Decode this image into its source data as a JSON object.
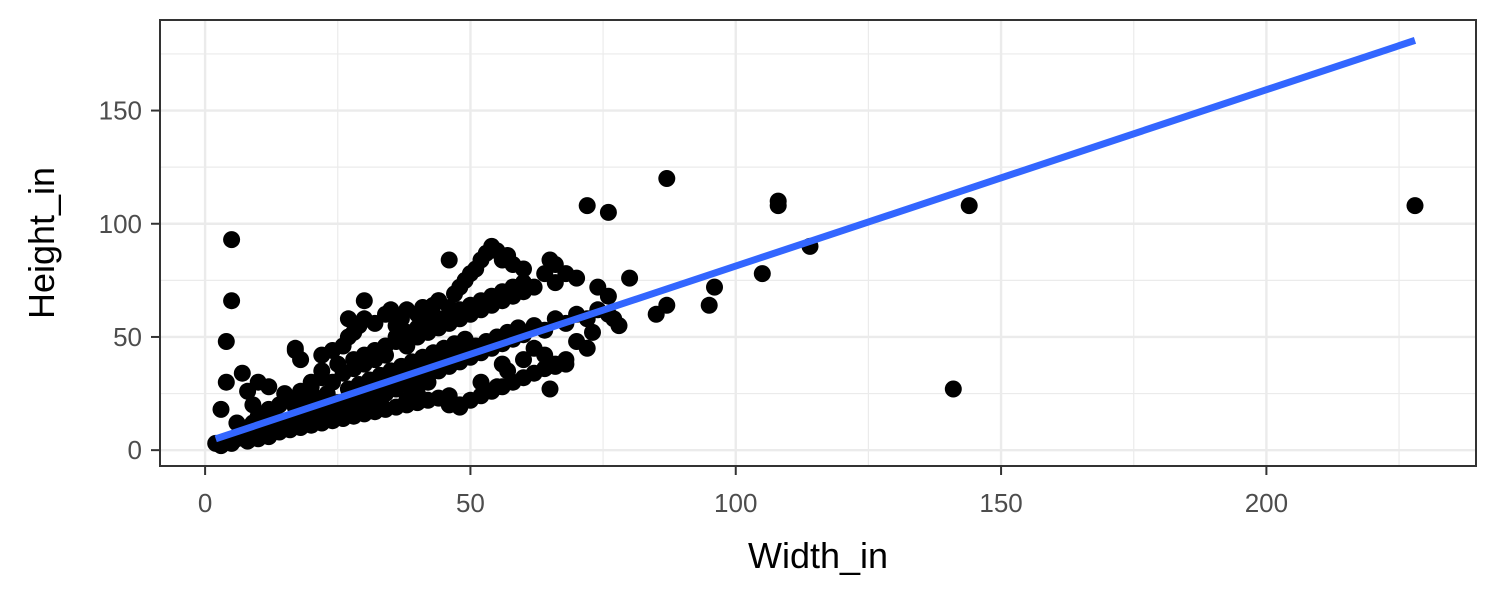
{
  "chart_data": {
    "type": "scatter",
    "title": "",
    "xlabel": "Width_in",
    "ylabel": "Height_in",
    "xlim": [
      -8.5,
      239.5
    ],
    "ylim": [
      -7,
      190
    ],
    "x_ticks": [
      0,
      50,
      100,
      150,
      200
    ],
    "x_tick_labels": [
      "0",
      "50",
      "100",
      "150",
      "200"
    ],
    "y_ticks": [
      0,
      50,
      100,
      150
    ],
    "y_tick_labels": [
      "0",
      "50",
      "100",
      "150"
    ],
    "x_minor_ticks": [
      25,
      75,
      125,
      175,
      225
    ],
    "y_minor_ticks": [
      25,
      75,
      125,
      175
    ],
    "grid": true,
    "legend": "none",
    "point_color": "#000000",
    "trend_color": "#3366FF",
    "series": [
      {
        "points": [
          [
            2,
            3
          ],
          [
            3,
            2
          ],
          [
            4,
            4
          ],
          [
            5,
            3
          ],
          [
            6,
            5
          ],
          [
            7,
            6
          ],
          [
            8,
            4
          ],
          [
            9,
            8
          ],
          [
            10,
            6
          ],
          [
            11,
            9
          ],
          [
            12,
            7
          ],
          [
            13,
            10
          ],
          [
            14,
            9
          ],
          [
            15,
            12
          ],
          [
            16,
            10
          ],
          [
            17,
            14
          ],
          [
            18,
            12
          ],
          [
            19,
            15
          ],
          [
            20,
            13
          ],
          [
            21,
            17
          ],
          [
            22,
            15
          ],
          [
            23,
            19
          ],
          [
            24,
            16
          ],
          [
            25,
            21
          ],
          [
            26,
            18
          ],
          [
            27,
            22
          ],
          [
            28,
            20
          ],
          [
            29,
            24
          ],
          [
            30,
            21
          ],
          [
            31,
            26
          ],
          [
            32,
            23
          ],
          [
            33,
            28
          ],
          [
            34,
            25
          ],
          [
            35,
            30
          ],
          [
            36,
            27
          ],
          [
            37,
            32
          ],
          [
            38,
            29
          ],
          [
            39,
            34
          ],
          [
            40,
            31
          ],
          [
            41,
            36
          ],
          [
            42,
            33
          ],
          [
            43,
            38
          ],
          [
            44,
            35
          ],
          [
            45,
            40
          ],
          [
            46,
            37
          ],
          [
            47,
            42
          ],
          [
            48,
            39
          ],
          [
            49,
            44
          ],
          [
            50,
            41
          ],
          [
            51,
            46
          ],
          [
            52,
            43
          ],
          [
            53,
            48
          ],
          [
            54,
            45
          ],
          [
            55,
            50
          ],
          [
            56,
            47
          ],
          [
            57,
            52
          ],
          [
            58,
            49
          ],
          [
            59,
            54
          ],
          [
            60,
            51
          ],
          [
            62,
            55
          ],
          [
            64,
            53
          ],
          [
            66,
            58
          ],
          [
            68,
            56
          ],
          [
            70,
            60
          ],
          [
            72,
            58
          ],
          [
            74,
            62
          ],
          [
            76,
            60
          ],
          [
            78,
            55
          ],
          [
            10,
            15
          ],
          [
            12,
            18
          ],
          [
            14,
            20
          ],
          [
            15,
            25
          ],
          [
            16,
            22
          ],
          [
            18,
            26
          ],
          [
            20,
            28
          ],
          [
            20,
            30
          ],
          [
            22,
            32
          ],
          [
            22,
            35
          ],
          [
            24,
            30
          ],
          [
            25,
            38
          ],
          [
            26,
            34
          ],
          [
            28,
            40
          ],
          [
            28,
            36
          ],
          [
            30,
            42
          ],
          [
            30,
            38
          ],
          [
            32,
            44
          ],
          [
            32,
            40
          ],
          [
            34,
            46
          ],
          [
            34,
            42
          ],
          [
            36,
            48
          ],
          [
            36,
            50
          ],
          [
            38,
            52
          ],
          [
            38,
            46
          ],
          [
            40,
            54
          ],
          [
            40,
            50
          ],
          [
            42,
            56
          ],
          [
            42,
            52
          ],
          [
            44,
            58
          ],
          [
            44,
            54
          ],
          [
            46,
            60
          ],
          [
            46,
            56
          ],
          [
            48,
            62
          ],
          [
            48,
            58
          ],
          [
            50,
            64
          ],
          [
            50,
            60
          ],
          [
            52,
            66
          ],
          [
            52,
            62
          ],
          [
            54,
            68
          ],
          [
            54,
            64
          ],
          [
            56,
            70
          ],
          [
            56,
            66
          ],
          [
            58,
            72
          ],
          [
            58,
            68
          ],
          [
            60,
            74
          ],
          [
            60,
            70
          ],
          [
            62,
            72
          ],
          [
            64,
            78
          ],
          [
            66,
            74
          ],
          [
            10,
            5
          ],
          [
            12,
            6
          ],
          [
            14,
            8
          ],
          [
            16,
            9
          ],
          [
            18,
            10
          ],
          [
            20,
            11
          ],
          [
            22,
            12
          ],
          [
            24,
            13
          ],
          [
            26,
            14
          ],
          [
            28,
            15
          ],
          [
            30,
            16
          ],
          [
            32,
            17
          ],
          [
            34,
            18
          ],
          [
            36,
            19
          ],
          [
            38,
            20
          ],
          [
            40,
            21
          ],
          [
            42,
            22
          ],
          [
            44,
            23
          ],
          [
            46,
            24
          ],
          [
            48,
            20
          ],
          [
            50,
            22
          ],
          [
            52,
            24
          ],
          [
            54,
            26
          ],
          [
            56,
            28
          ],
          [
            58,
            30
          ],
          [
            60,
            32
          ],
          [
            62,
            34
          ],
          [
            64,
            36
          ],
          [
            66,
            38
          ],
          [
            68,
            40
          ],
          [
            8,
            10
          ],
          [
            9,
            12
          ],
          [
            11,
            14
          ],
          [
            13,
            16
          ],
          [
            17,
            19
          ],
          [
            19,
            22
          ],
          [
            21,
            23
          ],
          [
            23,
            25
          ],
          [
            27,
            27
          ],
          [
            29,
            29
          ],
          [
            31,
            31
          ],
          [
            33,
            33
          ],
          [
            35,
            35
          ],
          [
            37,
            37
          ],
          [
            39,
            39
          ],
          [
            41,
            41
          ],
          [
            43,
            43
          ],
          [
            45,
            45
          ],
          [
            47,
            47
          ],
          [
            49,
            49
          ],
          [
            24,
            44
          ],
          [
            26,
            46
          ],
          [
            27,
            50
          ],
          [
            28,
            52
          ],
          [
            29,
            55
          ],
          [
            30,
            58
          ],
          [
            32,
            56
          ],
          [
            34,
            60
          ],
          [
            35,
            62
          ],
          [
            36,
            55
          ],
          [
            37,
            58
          ],
          [
            38,
            62
          ],
          [
            40,
            60
          ],
          [
            41,
            63
          ],
          [
            42,
            61
          ],
          [
            43,
            64
          ],
          [
            44,
            66
          ],
          [
            46,
            63
          ],
          [
            47,
            69
          ],
          [
            48,
            72
          ],
          [
            49,
            75
          ],
          [
            50,
            78
          ],
          [
            51,
            80
          ],
          [
            52,
            84
          ],
          [
            53,
            87
          ],
          [
            54,
            90
          ],
          [
            55,
            88
          ],
          [
            56,
            84
          ],
          [
            57,
            86
          ],
          [
            58,
            82
          ],
          [
            60,
            80
          ],
          [
            65,
            84
          ],
          [
            66,
            82
          ],
          [
            68,
            78
          ],
          [
            70,
            76
          ],
          [
            74,
            72
          ],
          [
            76,
            68
          ],
          [
            46,
            84
          ],
          [
            44,
            66
          ],
          [
            30,
            66
          ],
          [
            27,
            58
          ],
          [
            22,
            42
          ],
          [
            18,
            40
          ],
          [
            17,
            45
          ],
          [
            17,
            44
          ],
          [
            5,
            66
          ],
          [
            4,
            48
          ],
          [
            4,
            30
          ],
          [
            3,
            18
          ],
          [
            6,
            12
          ],
          [
            7,
            34
          ],
          [
            8,
            26
          ],
          [
            9,
            20
          ],
          [
            10,
            30
          ],
          [
            12,
            28
          ],
          [
            5,
            93
          ],
          [
            72,
            108
          ],
          [
            76,
            105
          ],
          [
            87,
            120
          ],
          [
            80,
            76
          ],
          [
            85,
            60
          ],
          [
            87,
            64
          ],
          [
            96,
            72
          ],
          [
            95,
            64
          ],
          [
            105,
            78
          ],
          [
            108,
            110
          ],
          [
            108,
            108
          ],
          [
            114,
            90
          ],
          [
            144,
            108
          ],
          [
            141,
            27
          ],
          [
            228,
            108
          ],
          [
            65,
            27
          ],
          [
            66,
            37
          ],
          [
            68,
            38
          ],
          [
            72,
            45
          ],
          [
            73,
            52
          ],
          [
            77,
            58
          ],
          [
            70,
            48
          ],
          [
            64,
            42
          ],
          [
            62,
            45
          ],
          [
            46,
            20
          ],
          [
            48,
            19
          ],
          [
            52,
            30
          ],
          [
            55,
            28
          ],
          [
            57,
            35
          ],
          [
            60,
            40
          ],
          [
            56,
            38
          ],
          [
            42,
            30
          ],
          [
            40,
            25
          ],
          [
            38,
            22
          ]
        ]
      }
    ],
    "trend_line": {
      "x": [
        2,
        228
      ],
      "y": [
        5,
        181
      ]
    }
  }
}
